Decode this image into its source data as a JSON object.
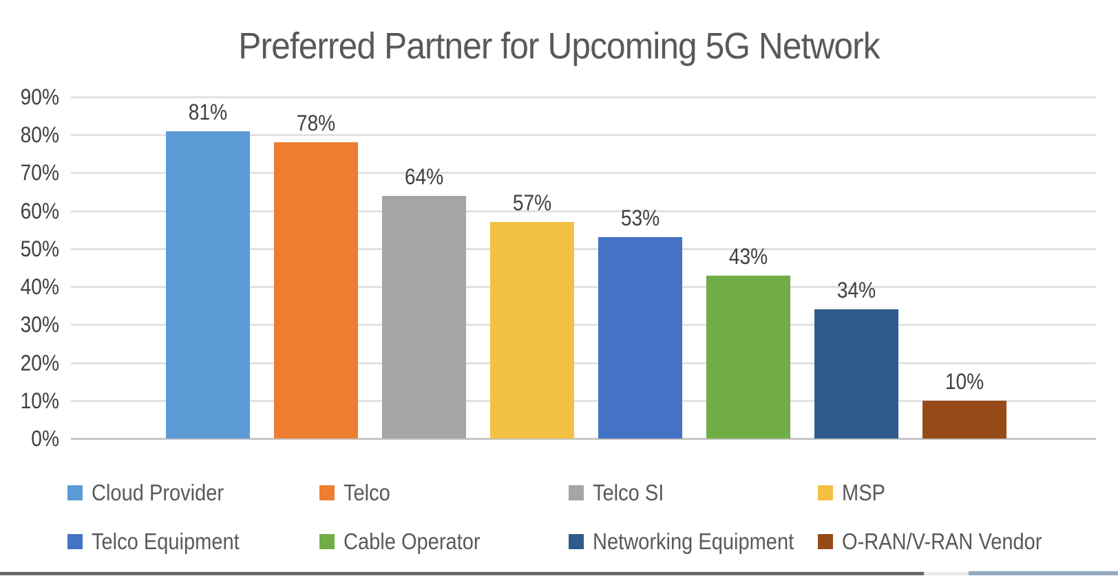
{
  "title": "Preferred Partner for Upcoming 5G Network",
  "chart_data": {
    "type": "bar",
    "title": "Preferred Partner for Upcoming 5G Network",
    "categories": [
      "Cloud Provider",
      "Telco",
      "Telco SI",
      "MSP",
      "Telco Equipment",
      "Cable Operator",
      "Networking Equipment",
      "O-RAN/V-RAN Vendor"
    ],
    "values": [
      81,
      78,
      64,
      57,
      53,
      43,
      34,
      10
    ],
    "value_labels": [
      "81%",
      "78%",
      "64%",
      "57%",
      "53%",
      "43%",
      "34%",
      "10%"
    ],
    "colors": [
      "#5B9BD5",
      "#ED7D31",
      "#A5A5A5",
      "#F2C043",
      "#4472C4",
      "#70AD47",
      "#2F5B8C",
      "#964A17"
    ],
    "xlabel": "",
    "ylabel": "",
    "ylim": [
      0,
      90
    ],
    "ytick_labels": [
      "0%",
      "10%",
      "20%",
      "30%",
      "40%",
      "50%",
      "60%",
      "70%",
      "80%",
      "90%"
    ],
    "grid": true,
    "legend_position": "bottom",
    "legend_rows": [
      [
        "Cloud Provider",
        "Telco",
        "Telco SI",
        "MSP"
      ],
      [
        "Telco Equipment",
        "Cable Operator",
        "Networking Equipment",
        "O-RAN/V-RAN Vendor"
      ]
    ]
  },
  "colors": {
    "title_text": "#595959",
    "label_text": "#404040",
    "legend_text": "#595959",
    "gridline": "#E2E2E2",
    "axis_line": "#C6C6C6",
    "background": "#FFFFFF",
    "bottom_bar_dark": "#696969",
    "bottom_bar_light": "#EAEAEA",
    "bottom_bar_blue": "#93A9BE"
  }
}
